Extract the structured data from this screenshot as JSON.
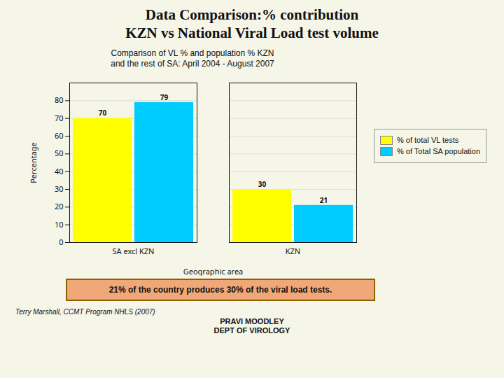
{
  "chart_data": {
    "type": "bar",
    "title": [
      "Data Comparison:% contribution",
      "KZN vs National Viral Load test volume"
    ],
    "subtitle": [
      "Comparison of VL % and population % KZN",
      "and the rest of SA: April 2004 - August 2007"
    ],
    "xlabel": "Geographic area",
    "ylabel": "Percentage",
    "categories": [
      "SA excl KZN",
      "KZN"
    ],
    "series": [
      {
        "name": "% of total VL tests",
        "color": "#FFFF00",
        "values": [
          70,
          30
        ]
      },
      {
        "name": "% of Total SA population",
        "color": "#00CCFF",
        "values": [
          79,
          21
        ]
      }
    ],
    "ylim": [
      0,
      90
    ],
    "yticks": [
      0,
      10,
      20,
      30,
      40,
      50,
      60,
      70,
      80
    ],
    "grid": true,
    "legend": "right",
    "data_labels": true,
    "annotations": [
      "21% of the country produces 30% of the viral load tests."
    ],
    "source": "Terry Marshall, CCMT Program NHLS (2007)",
    "credit": [
      "PRAVI MOODLEY",
      "DEPT OF VIROLOGY"
    ]
  }
}
